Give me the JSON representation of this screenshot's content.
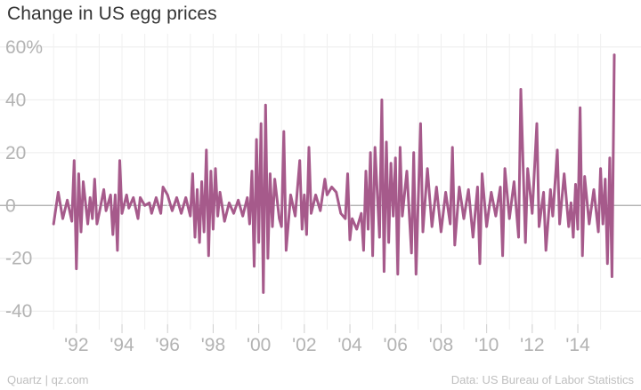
{
  "chart_data": {
    "type": "line",
    "title": "Change in US egg prices",
    "xlabel": "",
    "ylabel": "",
    "xlim": [
      1990.6,
      2015.6
    ],
    "ylim": [
      -47,
      63
    ],
    "y_ticks": [
      60,
      40,
      20,
      0,
      -20,
      -40
    ],
    "y_tick_labels": [
      "60%",
      "40",
      "20",
      "0",
      "-20",
      "-40"
    ],
    "x_ticks": [
      1992,
      1994,
      1996,
      1998,
      2000,
      2002,
      2004,
      2006,
      2008,
      2010,
      2012,
      2014
    ],
    "x_tick_labels": [
      "'92",
      "'94",
      "'96",
      "'98",
      "'00",
      "'02",
      "'04",
      "'06",
      "'08",
      "'10",
      "'12",
      "'14"
    ],
    "grid": true,
    "line_color": "#a65a8b",
    "series": [
      {
        "points": [
          [
            1991.0,
            -7
          ],
          [
            1991.2,
            5
          ],
          [
            1991.4,
            -5
          ],
          [
            1991.6,
            2
          ],
          [
            1991.8,
            -6
          ],
          [
            1991.9,
            17
          ],
          [
            1992.0,
            -24
          ],
          [
            1992.1,
            12
          ],
          [
            1992.2,
            -10
          ],
          [
            1992.3,
            9
          ],
          [
            1992.5,
            -7
          ],
          [
            1992.6,
            3
          ],
          [
            1992.7,
            -5
          ],
          [
            1992.8,
            10
          ],
          [
            1992.9,
            -7
          ],
          [
            1993.0,
            -3
          ],
          [
            1993.2,
            6
          ],
          [
            1993.3,
            -2
          ],
          [
            1993.5,
            4
          ],
          [
            1993.6,
            -11
          ],
          [
            1993.7,
            4
          ],
          [
            1993.8,
            -17
          ],
          [
            1993.9,
            17
          ],
          [
            1994.0,
            -3
          ],
          [
            1994.2,
            4
          ],
          [
            1994.3,
            -1
          ],
          [
            1994.5,
            3
          ],
          [
            1994.7,
            -5
          ],
          [
            1994.8,
            3
          ],
          [
            1995.0,
            0
          ],
          [
            1995.2,
            1
          ],
          [
            1995.3,
            -3
          ],
          [
            1995.5,
            3
          ],
          [
            1995.7,
            -3
          ],
          [
            1995.8,
            7
          ],
          [
            1996.0,
            4
          ],
          [
            1996.2,
            -2
          ],
          [
            1996.4,
            3
          ],
          [
            1996.6,
            -3
          ],
          [
            1996.8,
            3
          ],
          [
            1997.0,
            -4
          ],
          [
            1997.1,
            12
          ],
          [
            1997.2,
            -12
          ],
          [
            1997.3,
            6
          ],
          [
            1997.4,
            -14
          ],
          [
            1997.5,
            9
          ],
          [
            1997.6,
            -10
          ],
          [
            1997.7,
            21
          ],
          [
            1997.8,
            -19
          ],
          [
            1997.9,
            13
          ],
          [
            1998.0,
            -9
          ],
          [
            1998.1,
            14
          ],
          [
            1998.2,
            -4
          ],
          [
            1998.3,
            5
          ],
          [
            1998.5,
            -6
          ],
          [
            1998.7,
            1
          ],
          [
            1998.9,
            -3
          ],
          [
            1999.1,
            2
          ],
          [
            1999.3,
            -4
          ],
          [
            1999.5,
            3
          ],
          [
            1999.6,
            -7
          ],
          [
            1999.7,
            13
          ],
          [
            1999.8,
            -23
          ],
          [
            1999.9,
            25
          ],
          [
            2000.0,
            -14
          ],
          [
            2000.1,
            31
          ],
          [
            2000.2,
            -33
          ],
          [
            2000.3,
            38
          ],
          [
            2000.4,
            -20
          ],
          [
            2000.5,
            12
          ],
          [
            2000.6,
            -8
          ],
          [
            2000.7,
            10
          ],
          [
            2000.9,
            -5
          ],
          [
            2001.0,
            -8
          ],
          [
            2001.1,
            28
          ],
          [
            2001.2,
            -17
          ],
          [
            2001.4,
            4
          ],
          [
            2001.6,
            -4
          ],
          [
            2001.8,
            17
          ],
          [
            2001.9,
            -9
          ],
          [
            2002.0,
            4
          ],
          [
            2002.1,
            -11
          ],
          [
            2002.2,
            22
          ],
          [
            2002.3,
            -3
          ],
          [
            2002.5,
            4
          ],
          [
            2002.7,
            -2
          ],
          [
            2002.9,
            10
          ],
          [
            2003.0,
            4
          ],
          [
            2003.2,
            7
          ],
          [
            2003.4,
            5
          ],
          [
            2003.6,
            -3
          ],
          [
            2003.8,
            -5
          ],
          [
            2003.9,
            12
          ],
          [
            2004.0,
            -13
          ],
          [
            2004.1,
            -5
          ],
          [
            2004.3,
            -9
          ],
          [
            2004.5,
            -3
          ],
          [
            2004.6,
            -17
          ],
          [
            2004.7,
            13
          ],
          [
            2004.8,
            -9
          ],
          [
            2004.9,
            20
          ],
          [
            2005.0,
            -19
          ],
          [
            2005.1,
            22
          ],
          [
            2005.3,
            -12
          ],
          [
            2005.4,
            40
          ],
          [
            2005.5,
            -25
          ],
          [
            2005.6,
            24
          ],
          [
            2005.7,
            -14
          ],
          [
            2005.8,
            16
          ],
          [
            2005.9,
            -4
          ],
          [
            2006.0,
            18
          ],
          [
            2006.1,
            -26
          ],
          [
            2006.2,
            22
          ],
          [
            2006.3,
            -4
          ],
          [
            2006.5,
            13
          ],
          [
            2006.7,
            -18
          ],
          [
            2006.8,
            20
          ],
          [
            2006.9,
            -26
          ],
          [
            2007.1,
            31
          ],
          [
            2007.2,
            -10
          ],
          [
            2007.4,
            14
          ],
          [
            2007.6,
            -8
          ],
          [
            2007.8,
            7
          ],
          [
            2008.0,
            -10
          ],
          [
            2008.2,
            5
          ],
          [
            2008.4,
            -7
          ],
          [
            2008.5,
            22
          ],
          [
            2008.6,
            -15
          ],
          [
            2008.8,
            7
          ],
          [
            2009.0,
            -5
          ],
          [
            2009.2,
            6
          ],
          [
            2009.4,
            -12
          ],
          [
            2009.6,
            7
          ],
          [
            2009.7,
            -22
          ],
          [
            2009.8,
            12
          ],
          [
            2010.0,
            -8
          ],
          [
            2010.2,
            5
          ],
          [
            2010.4,
            -4
          ],
          [
            2010.6,
            7
          ],
          [
            2010.7,
            -19
          ],
          [
            2010.8,
            14
          ],
          [
            2011.0,
            -5
          ],
          [
            2011.2,
            9
          ],
          [
            2011.4,
            -12
          ],
          [
            2011.5,
            44
          ],
          [
            2011.7,
            -14
          ],
          [
            2011.8,
            14
          ],
          [
            2012.0,
            -3
          ],
          [
            2012.2,
            31
          ],
          [
            2012.3,
            -8
          ],
          [
            2012.5,
            5
          ],
          [
            2012.6,
            -17
          ],
          [
            2012.8,
            6
          ],
          [
            2012.9,
            -4
          ],
          [
            2013.1,
            21
          ],
          [
            2013.2,
            -7
          ],
          [
            2013.4,
            12
          ],
          [
            2013.6,
            -8
          ],
          [
            2013.7,
            1
          ],
          [
            2013.8,
            -12
          ],
          [
            2013.9,
            8
          ],
          [
            2014.0,
            -9
          ],
          [
            2014.1,
            37
          ],
          [
            2014.2,
            -19
          ],
          [
            2014.3,
            11
          ],
          [
            2014.5,
            -7
          ],
          [
            2014.7,
            6
          ],
          [
            2014.9,
            -10
          ],
          [
            2015.0,
            14
          ],
          [
            2015.1,
            -7
          ],
          [
            2015.2,
            10
          ],
          [
            2015.3,
            -22
          ],
          [
            2015.4,
            18
          ],
          [
            2015.5,
            -27
          ],
          [
            2015.6,
            57
          ]
        ]
      }
    ]
  },
  "footer": {
    "credit": "Quartz | qz.com",
    "source": "Data: US Bureau of Labor Statistics"
  }
}
